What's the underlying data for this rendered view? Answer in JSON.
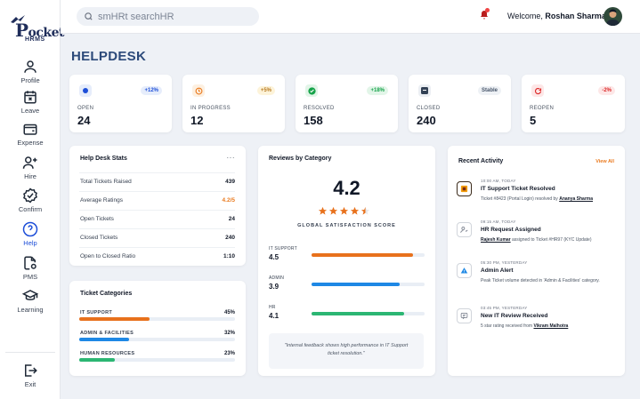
{
  "brand": {
    "logo_main": "ocket",
    "logo_initial": "P",
    "logo_sub": "HRMS"
  },
  "header": {
    "search_placeholder": "smHRt searchHR",
    "welcome_prefix": "Welcome,",
    "user_name": "Roshan Sharma"
  },
  "sidebar": {
    "items": [
      {
        "label": "Profile",
        "icon": "user-icon"
      },
      {
        "label": "Leave",
        "icon": "calendar-x-icon"
      },
      {
        "label": "Expense",
        "icon": "wallet-icon"
      },
      {
        "label": "Hire",
        "icon": "user-plus-icon"
      },
      {
        "label": "Confirm",
        "icon": "badge-check-icon"
      },
      {
        "label": "Help",
        "icon": "help-circle-icon",
        "active": true
      },
      {
        "label": "PMS",
        "icon": "file-gear-icon"
      },
      {
        "label": "Learning",
        "icon": "graduation-cap-icon"
      }
    ],
    "exit_label": "Exit"
  },
  "page": {
    "title": "HELPDESK"
  },
  "stats": [
    {
      "label": "OPEN",
      "value": "24",
      "badge": "+12%",
      "color": "#1d4ed8",
      "bg": "#e6edfb",
      "badge_bg": "#e6edfb",
      "badge_color": "#1d4ed8"
    },
    {
      "label": "IN PROGRESS",
      "value": "12",
      "badge": "+5%",
      "color": "#ea7a1e",
      "bg": "#fdf0e1",
      "badge_bg": "#fdf3d9",
      "badge_color": "#b7791f"
    },
    {
      "label": "RESOLVED",
      "value": "158",
      "badge": "+18%",
      "color": "#16a34a",
      "bg": "#e2f5e8",
      "badge_bg": "#e2f5e8",
      "badge_color": "#16a34a"
    },
    {
      "label": "CLOSED",
      "value": "240",
      "badge": "Stable",
      "color": "#475569",
      "bg": "#eceff3",
      "badge_bg": "#eef1f5",
      "badge_color": "#475569"
    },
    {
      "label": "REOPEN",
      "value": "5",
      "badge": "-2%",
      "color": "#dc2626",
      "bg": "#fde7e7",
      "badge_bg": "#fde7e7",
      "badge_color": "#dc2626"
    }
  ],
  "helpdesk_stats": {
    "title": "Help Desk Stats",
    "more": "···",
    "rows": [
      {
        "label": "Total Tickets Raised",
        "value": "439"
      },
      {
        "label": "Average Ratings",
        "value": "4.2/5",
        "highlight": true
      },
      {
        "label": "Open Tickets",
        "value": "24"
      },
      {
        "label": "Closed Tickets",
        "value": "240"
      },
      {
        "label": "Open to Closed Ratio",
        "value": "1:10"
      }
    ]
  },
  "ticket_categories": {
    "title": "Ticket Categories",
    "rows": [
      {
        "label": "IT SUPPORT",
        "value": "45%",
        "percent": 45,
        "color": "#e8711c"
      },
      {
        "label": "ADMIN & FACILITIES",
        "value": "32%",
        "percent": 32,
        "color": "#1e88e5"
      },
      {
        "label": "HUMAN RESOURCES",
        "value": "23%",
        "percent": 23,
        "color": "#2bb673"
      }
    ]
  },
  "reviews": {
    "title": "Reviews by Category",
    "rating": "4.2",
    "stars_filled": 4.2,
    "caption": "GLOBAL SATISFACTION SCORE",
    "rows": [
      {
        "label": "IT SUPPORT",
        "value": "4.5",
        "score": 4.5,
        "color": "#e8711c"
      },
      {
        "label": "ADMIN",
        "value": "3.9",
        "score": 3.9,
        "color": "#1e88e5"
      },
      {
        "label": "HR",
        "value": "4.1",
        "score": 4.1,
        "color": "#2bb673"
      }
    ],
    "quote": "\"Internal feedback shows high performance in IT Support ticket resolution.\""
  },
  "recent_activity": {
    "title": "Recent Activity",
    "view_all": "View All",
    "items": [
      {
        "time": "10:00 AM, TODAY",
        "title": "IT Support Ticket Resolved",
        "desc": "Ticket #8423 (Portal Login) resolved by",
        "actor": "Ananya Sharma",
        "desc_after": "",
        "icon": "ticket-icon"
      },
      {
        "time": "09:15 AM, TODAY",
        "title": "HR Request Assigned",
        "desc": "",
        "actor": "Rajesh Kumar",
        "desc_after": "assigned to Ticket #HR97 (KYC Update)",
        "icon": "user-assign-icon"
      },
      {
        "time": "05:30 PM, YESTERDAY",
        "title": "Admin Alert",
        "desc": "Peak Ticket volume detected in 'Admin & Facilities' category.",
        "actor": "",
        "desc_after": "",
        "icon": "alert-icon"
      },
      {
        "time": "03:45 PM, YESTERDAY",
        "title": "New IT Review Received",
        "desc": "5 star rating received from",
        "actor": "Vikram Malhotra",
        "desc_after": "",
        "icon": "review-icon"
      }
    ]
  }
}
